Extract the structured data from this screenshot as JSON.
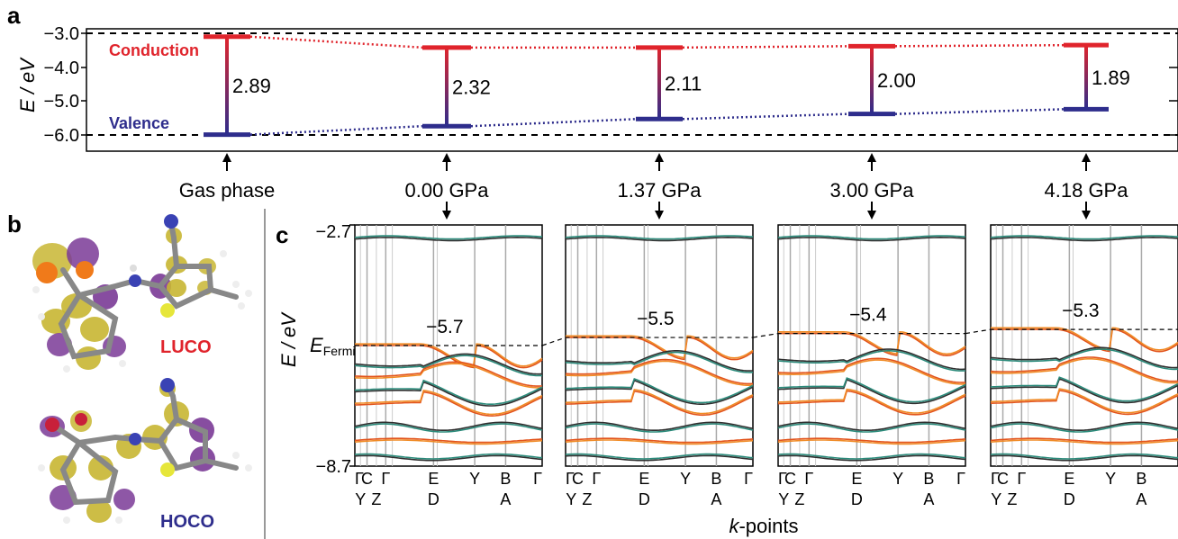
{
  "panels": {
    "a": "a",
    "b": "b",
    "c": "c"
  },
  "chart_data": [
    {
      "panel": "a",
      "type": "bar",
      "ylabel": "E / eV",
      "yticks": [
        "−3.0",
        "−4.0",
        "−5.0",
        "−6.0"
      ],
      "ylim": [
        -6.45,
        -2.95
      ],
      "band_labels": {
        "conduction": "Conduction",
        "valence": "Valence"
      },
      "categories": [
        "Gas phase",
        "0.00 GPa",
        "1.37 GPa",
        "3.00 GPa",
        "4.18 GPa"
      ],
      "series": [
        {
          "name": "Conduction",
          "values": [
            -3.1,
            -3.42,
            -3.42,
            -3.38,
            -3.35
          ]
        },
        {
          "name": "Valence",
          "values": [
            -5.99,
            -5.74,
            -5.53,
            -5.38,
            -5.24
          ]
        }
      ],
      "gap_labels": [
        "2.89",
        "2.32",
        "2.11",
        "2.00",
        "1.89"
      ],
      "reference_lines": [
        -3.0,
        -6.0
      ],
      "colors": {
        "conduction": "#e0242c",
        "valence": "#2e2d8c"
      }
    },
    {
      "panel": "c",
      "type": "line",
      "ylabel": "E / eV",
      "yticks": [
        "−2.7",
        "−8.7"
      ],
      "fermi_label": "E",
      "fermi_subscript": "Fermi",
      "xlabel": "k-points",
      "ylim": [
        -8.7,
        -2.7
      ],
      "kpoints_top": [
        "Γ",
        "C",
        "Γ",
        "E",
        "Y",
        "B",
        "Γ"
      ],
      "kpoints_bottom": [
        "Y",
        "Z",
        "D",
        "A"
      ],
      "pressures": [
        "0.00 GPa",
        "1.37 GPa",
        "3.00 GPa",
        "4.18 GPa"
      ],
      "fermi_values": [
        "−5.7",
        "−5.5",
        "−5.4",
        "−5.3"
      ],
      "fermi_levels": [
        -5.7,
        -5.5,
        -5.4,
        -5.3
      ],
      "band_colors": [
        "#2f2f2f",
        "#e2541c",
        "#2a8a7a",
        "#f08a24"
      ]
    }
  ],
  "molecules": {
    "luco_label": "LUCO",
    "hoco_label": "HOCO"
  }
}
